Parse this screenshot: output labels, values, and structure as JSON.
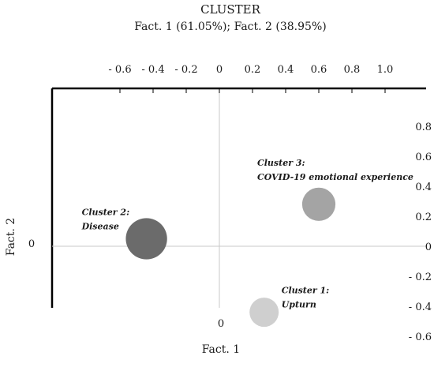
{
  "chart_data": {
    "type": "scatter",
    "title": "CLUSTER",
    "subtitle": "Fact. 1 (61.05%); Fact. 2 (38.95%)",
    "xlabel": "Fact. 1",
    "ylabel": "Fact. 2",
    "xlim": [
      -0.8,
      1.2
    ],
    "ylim": [
      -0.6,
      0.9
    ],
    "x_ticks": [
      {
        "value": -0.6,
        "label": "- 0.6"
      },
      {
        "value": -0.4,
        "label": "- 0.4"
      },
      {
        "value": -0.2,
        "label": "- 0.2"
      },
      {
        "value": 0,
        "label": "0"
      },
      {
        "value": 0.2,
        "label": "0.2"
      },
      {
        "value": 0.4,
        "label": "0.4"
      },
      {
        "value": 0.6,
        "label": "0.6"
      },
      {
        "value": 0.8,
        "label": "0.8"
      },
      {
        "value": 1.0,
        "label": "1.0"
      }
    ],
    "y_ticks": [
      {
        "value": 0.8,
        "label": "0.8"
      },
      {
        "value": 0.6,
        "label": "0.6"
      },
      {
        "value": 0.4,
        "label": "0.4"
      },
      {
        "value": 0.2,
        "label": "0.2"
      },
      {
        "value": 0,
        "label": "0"
      },
      {
        "value": -0.2,
        "label": "- 0.2"
      },
      {
        "value": -0.4,
        "label": "- 0.4"
      },
      {
        "value": -0.6,
        "label": "- 0.6"
      }
    ],
    "x_zero_label": "0",
    "y_zero_label": "0",
    "clusters": [
      {
        "label_line1": "Cluster 1:",
        "label_line2": "Upturn",
        "x": 0.27,
        "y": -0.44,
        "size": 1,
        "color": "#cfcfcf"
      },
      {
        "label_line1": "Cluster 2:",
        "label_line2": "Disease",
        "x": -0.44,
        "y": 0.05,
        "size": 2,
        "color": "#6b6b6b"
      },
      {
        "label_line1": "Cluster 3:",
        "label_line2": "COVID-19 emotional experience",
        "x": 0.6,
        "y": 0.28,
        "size": 1.3,
        "color": "#a4a4a4"
      }
    ],
    "grid": false,
    "reference_lines": "zero lines"
  }
}
